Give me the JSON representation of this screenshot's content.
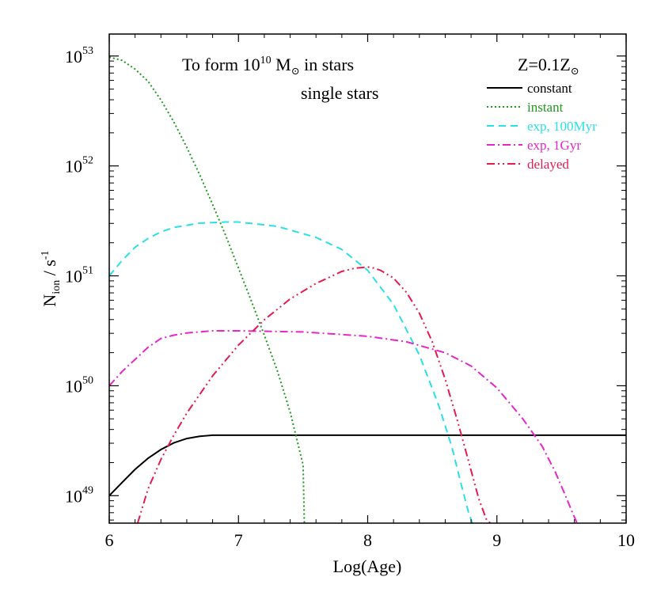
{
  "chart_data": {
    "type": "line",
    "xlabel": "Log(Age)",
    "ylabel": {
      "main": "N",
      "sub": "ion",
      "sep": " / s",
      "sup": "-1"
    },
    "xlim": [
      6,
      10
    ],
    "ylim": [
      48.75,
      53.2
    ],
    "y_scale": "log",
    "x_ticks": [
      6,
      7,
      8,
      9,
      10
    ],
    "x_tick_labels": [
      "6",
      "7",
      "8",
      "9",
      "10"
    ],
    "y_ticks": [
      49,
      50,
      51,
      52,
      53
    ],
    "y_tick_labels": [
      {
        "base": "10",
        "exp": "49"
      },
      {
        "base": "10",
        "exp": "50"
      },
      {
        "base": "10",
        "exp": "51"
      },
      {
        "base": "10",
        "exp": "52"
      },
      {
        "base": "10",
        "exp": "53"
      }
    ],
    "annotations": {
      "title": {
        "pre": "To form 10",
        "exp": "10",
        "unit": " M",
        "post": " in stars"
      },
      "subtitle": "single stars",
      "metallicity": {
        "pre": "Z=0.1Z"
      }
    },
    "legend_position": "top-right",
    "series": [
      {
        "name": "constant",
        "color": "#000000",
        "dash": "solid",
        "x": [
          6.0,
          6.1,
          6.2,
          6.3,
          6.4,
          6.5,
          6.6,
          6.7,
          6.8,
          7.0,
          8.0,
          9.0,
          10.0
        ],
        "y": [
          49.0,
          49.12,
          49.24,
          49.34,
          49.42,
          49.48,
          49.52,
          49.54,
          49.55,
          49.55,
          49.55,
          49.55,
          49.55
        ]
      },
      {
        "name": "instant",
        "color": "#1e9a1e",
        "dash": "dotted",
        "x": [
          6.0,
          6.1,
          6.2,
          6.3,
          6.4,
          6.5,
          6.6,
          6.7,
          6.8,
          6.9,
          7.0,
          7.1,
          7.2,
          7.3,
          7.4,
          7.5,
          7.51
        ],
        "y": [
          52.99,
          52.96,
          52.88,
          52.77,
          52.6,
          52.4,
          52.17,
          51.92,
          51.65,
          51.37,
          51.07,
          50.77,
          50.46,
          50.14,
          49.76,
          49.28,
          48.75
        ]
      },
      {
        "name": "exp, 100Myr",
        "color": "#29e0e8",
        "dash": "dashed",
        "x": [
          6.0,
          6.1,
          6.2,
          6.3,
          6.4,
          6.5,
          6.7,
          6.9,
          7.0,
          7.3,
          7.6,
          7.8,
          8.0,
          8.2,
          8.4,
          8.55,
          8.65,
          8.72,
          8.78,
          8.81
        ],
        "y": [
          51.0,
          51.14,
          51.26,
          51.34,
          51.4,
          51.44,
          51.48,
          51.49,
          51.49,
          51.45,
          51.35,
          51.24,
          51.05,
          50.74,
          50.28,
          49.82,
          49.45,
          49.12,
          48.85,
          48.75
        ]
      },
      {
        "name": "exp, 1Gyr",
        "color": "#e626c8",
        "dash": "dashdot",
        "x": [
          6.0,
          6.1,
          6.2,
          6.3,
          6.4,
          6.5,
          6.6,
          6.8,
          7.0,
          7.5,
          8.0,
          8.3,
          8.6,
          8.8,
          9.0,
          9.2,
          9.35,
          9.45,
          9.52,
          9.58,
          9.62
        ],
        "y": [
          50.0,
          50.13,
          50.24,
          50.35,
          50.43,
          50.46,
          50.48,
          50.5,
          50.5,
          50.49,
          50.45,
          50.4,
          50.3,
          50.18,
          49.98,
          49.7,
          49.45,
          49.22,
          49.03,
          48.86,
          48.75
        ]
      },
      {
        "name": "delayed",
        "color": "#e61a4e",
        "dash": "dashdotdot",
        "x": [
          6.22,
          6.3,
          6.4,
          6.5,
          6.6,
          6.8,
          7.0,
          7.2,
          7.4,
          7.6,
          7.8,
          7.9,
          8.0,
          8.05,
          8.1,
          8.2,
          8.3,
          8.4,
          8.5,
          8.6,
          8.7,
          8.8,
          8.86,
          8.92,
          8.95
        ],
        "y": [
          48.75,
          49.06,
          49.33,
          49.55,
          49.75,
          50.09,
          50.37,
          50.6,
          50.79,
          50.93,
          51.04,
          51.07,
          51.08,
          51.07,
          51.05,
          50.98,
          50.85,
          50.66,
          50.4,
          50.06,
          49.66,
          49.23,
          48.97,
          48.78,
          48.75
        ]
      }
    ]
  }
}
